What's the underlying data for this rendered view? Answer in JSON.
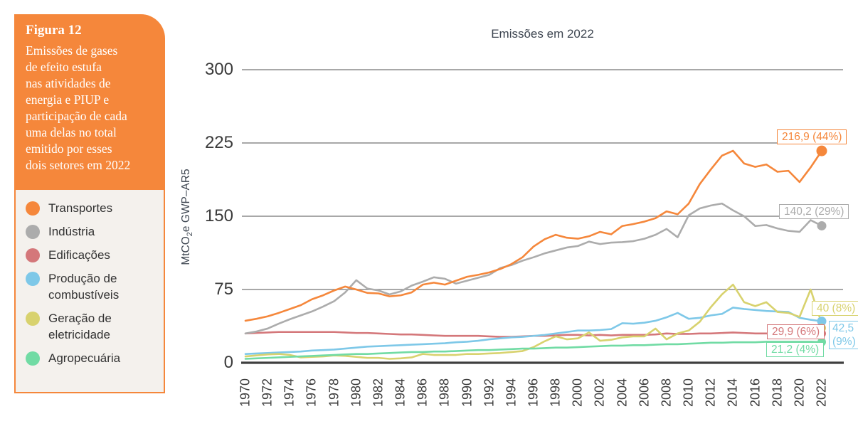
{
  "figure_panel": {
    "label": "Figura 12",
    "lines": [
      "Emissões de gases",
      "de efeito estufa",
      "nas atividades de",
      "energia e PIUP e",
      "participação de cada",
      "uma delas no total",
      "emitido por esses",
      "dois setores em 2022"
    ],
    "background_color": "#F5873B",
    "text_color": "#FFFFFF"
  },
  "legend": {
    "items": [
      {
        "key": "transportes",
        "label": "Transportes",
        "color": "#F5873B"
      },
      {
        "key": "industria",
        "label": "Indústria",
        "color": "#ACACAC"
      },
      {
        "key": "edificacoes",
        "label": "Edificações",
        "color": "#D4777A"
      },
      {
        "key": "producao",
        "label": "Produção de combustíveis",
        "color": "#7EC8E8"
      },
      {
        "key": "geracao",
        "label": "Geração de eletricidade",
        "color": "#D8D26E"
      },
      {
        "key": "agropecuaria",
        "label": "Agropecuária",
        "color": "#71DBA4"
      }
    ]
  },
  "chart": {
    "title": "Emissões em 2022",
    "y_axis_label": {
      "prefix": "MtCO",
      "sub": "2",
      "suffix": "e GWP–AR5"
    },
    "y_ticks": [
      300,
      225,
      150,
      75,
      0
    ],
    "x_ticks": [
      "1970",
      "1972",
      "1974",
      "1976",
      "1978",
      "1980",
      "1982",
      "1984",
      "1986",
      "1988",
      "1990",
      "1992",
      "1994",
      "1996",
      "1998",
      "2000",
      "2002",
      "2004",
      "2006",
      "2008",
      "2010",
      "2012",
      "2014",
      "2016",
      "2018",
      "2020",
      "2022"
    ],
    "grid_color": "#8C8C8C",
    "axis_color": "#3F3F3F"
  },
  "chart_data": {
    "type": "line",
    "title": "Emissões em 2022",
    "ylabel": "MtCO2e GWP–AR5",
    "ylim": [
      0,
      300
    ],
    "grid": "horizontal",
    "legend_position": "left",
    "x": [
      1970,
      1971,
      1972,
      1973,
      1974,
      1975,
      1976,
      1977,
      1978,
      1979,
      1980,
      1981,
      1982,
      1983,
      1984,
      1985,
      1986,
      1987,
      1988,
      1989,
      1990,
      1991,
      1992,
      1993,
      1994,
      1995,
      1996,
      1997,
      1998,
      1999,
      2000,
      2001,
      2002,
      2003,
      2004,
      2005,
      2006,
      2007,
      2008,
      2009,
      2010,
      2011,
      2012,
      2013,
      2014,
      2015,
      2016,
      2017,
      2018,
      2019,
      2020,
      2021,
      2022
    ],
    "series": [
      {
        "key": "transportes",
        "name": "Transportes",
        "color": "#F5873B",
        "end_label": "216,9 (44%)",
        "end_value": 216.9,
        "share_2022": "44%",
        "values": [
          43,
          45,
          47.5,
          51,
          55,
          59,
          65,
          69,
          74,
          78,
          75,
          71.5,
          71,
          68,
          69,
          72,
          80,
          82,
          80,
          84,
          88,
          90,
          92.5,
          96,
          101,
          108,
          119,
          126.5,
          131,
          128,
          127,
          129.5,
          134,
          131.5,
          140,
          142,
          144.5,
          148,
          155,
          152,
          163,
          183,
          198,
          212,
          217,
          204,
          200.5,
          203,
          195.5,
          196.5,
          185,
          200,
          216.9
        ]
      },
      {
        "key": "industria",
        "name": "Indústria",
        "color": "#ACACAC",
        "end_label": "140,2 (29%)",
        "end_value": 140.2,
        "share_2022": "29%",
        "values": [
          30,
          32,
          35,
          40,
          44.5,
          48.5,
          52.5,
          57.5,
          63,
          72,
          84.5,
          76,
          74,
          70,
          73,
          79,
          83,
          87.5,
          86,
          81,
          84,
          87,
          90,
          97,
          100,
          104.5,
          108,
          112,
          115,
          118,
          119.5,
          124,
          121.5,
          123,
          123.5,
          124.5,
          127,
          131,
          137,
          128.5,
          151,
          158,
          161,
          163,
          156,
          150,
          140,
          141,
          137.5,
          135,
          134,
          146,
          140.2
        ]
      },
      {
        "key": "edificacoes",
        "name": "Edificações",
        "color": "#D4777A",
        "end_label": "29,9 (6%)",
        "end_value": 29.9,
        "share_2022": "6%",
        "values": [
          30,
          30.5,
          31,
          31.5,
          31.5,
          31.5,
          31.5,
          31.5,
          31.5,
          31,
          30.5,
          30.5,
          30,
          29.5,
          29,
          29,
          28.5,
          28,
          27.5,
          27.5,
          27.5,
          27.5,
          27,
          26.5,
          26.5,
          27,
          27.5,
          27.5,
          28,
          28.5,
          28.5,
          28,
          28.5,
          28,
          28.5,
          28.5,
          28.5,
          29,
          30,
          29.5,
          29.5,
          30,
          30,
          30.5,
          31,
          30.5,
          30,
          30,
          29.5,
          30,
          29,
          29.5,
          29.9
        ]
      },
      {
        "key": "producao",
        "name": "Produção de combustíveis",
        "color": "#7EC8E8",
        "end_label": "42,5 (9%)",
        "end_value": 42.5,
        "share_2022": "9%",
        "values": [
          9,
          9.5,
          10,
          10.5,
          11,
          11.5,
          12.5,
          13,
          13.5,
          14.5,
          15.5,
          16.5,
          17,
          17.5,
          18,
          18.5,
          19,
          19.5,
          20,
          21,
          21.5,
          22.5,
          24,
          25,
          26,
          26.5,
          27.5,
          28.5,
          30,
          31.5,
          33,
          33,
          33.5,
          34.5,
          40.5,
          40,
          41,
          43,
          46.5,
          51,
          45,
          46,
          48.5,
          50,
          56.5,
          55,
          54,
          53,
          52.5,
          52,
          46,
          44,
          42.5
        ]
      },
      {
        "key": "geracao",
        "name": "Geração de eletricidade",
        "color": "#D8D26E",
        "end_label": "40 (8%)",
        "end_value": 40,
        "share_2022": "8%",
        "values": [
          6.5,
          7.5,
          8.5,
          9,
          8,
          5.5,
          6,
          6.5,
          7.5,
          7,
          6,
          5,
          5,
          4,
          4.5,
          5.5,
          9,
          8,
          8,
          8,
          9,
          9,
          9.5,
          10,
          11,
          12,
          16,
          22,
          27,
          24,
          25,
          31,
          22.5,
          23.5,
          26,
          27,
          27,
          35,
          24,
          30,
          33,
          42,
          57,
          70,
          80,
          62,
          58,
          62,
          52,
          51,
          47,
          75,
          40
        ]
      },
      {
        "key": "agropecuaria",
        "name": "Agropecuária",
        "color": "#71DBA4",
        "end_label": "21,2 (4%)",
        "end_value": 21.2,
        "share_2022": "4%",
        "values": [
          4,
          4.5,
          5,
          5.5,
          6,
          6.5,
          7,
          7.5,
          8,
          8.5,
          9,
          9,
          9.5,
          10,
          10.5,
          11,
          11,
          11.5,
          11.5,
          12,
          12.5,
          13,
          13,
          13.5,
          14,
          14.5,
          14.5,
          15,
          15.5,
          15.5,
          16,
          16.5,
          17,
          17.5,
          17.5,
          18,
          18,
          18.5,
          19,
          19,
          19.5,
          20,
          20.5,
          20.5,
          21,
          21,
          21,
          21.5,
          21.5,
          21.5,
          21.5,
          21.5,
          21.2
        ]
      }
    ]
  }
}
